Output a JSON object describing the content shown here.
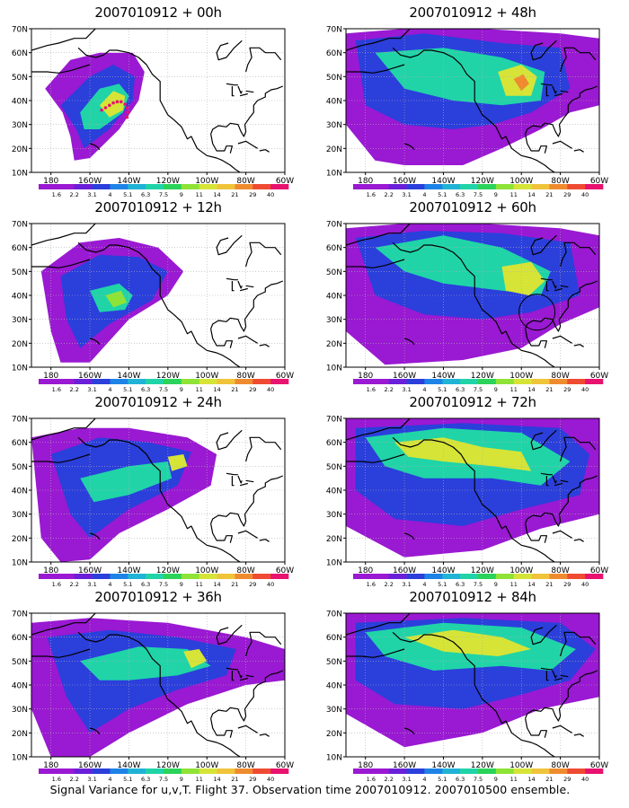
{
  "lat_labels": [
    "70N",
    "60N",
    "50N",
    "40N",
    "30N",
    "20N",
    "10N"
  ],
  "lon_labels": [
    "180",
    "160W",
    "140W",
    "120W",
    "100W",
    "80W",
    "60W"
  ],
  "colorbar": {
    "values": [
      "1.6",
      "2.2",
      "3.1",
      "4",
      "5.1",
      "6.3",
      "7.5",
      "9",
      "11",
      "14",
      "21",
      "29",
      "40"
    ],
    "colors": [
      "#9a19d2",
      "#6a1fd8",
      "#2b3fdb",
      "#1e83e6",
      "#21b3d6",
      "#20d4a8",
      "#2bd35a",
      "#8fe336",
      "#d6e437",
      "#f0c43a",
      "#ef8b2f",
      "#ef4b32",
      "#e8126f"
    ]
  },
  "panels": [
    {
      "title": "2007010912 + 00h"
    },
    {
      "title": "2007010912 + 48h"
    },
    {
      "title": "2007010912 + 12h"
    },
    {
      "title": "2007010912 + 60h"
    },
    {
      "title": "2007010912 + 24h"
    },
    {
      "title": "2007010912 + 72h"
    },
    {
      "title": "2007010912 + 36h"
    },
    {
      "title": "2007010912 + 84h"
    }
  ],
  "footer": "Signal Variance for u,v,T. Flight 37. Observation time 2007010912. 2007010500 ensemble."
}
